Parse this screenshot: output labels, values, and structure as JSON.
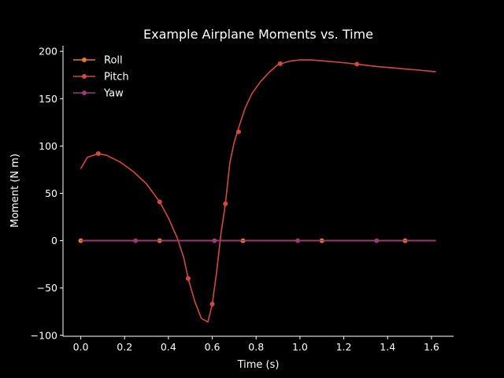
{
  "chart_data": {
    "type": "line",
    "title": "Example Airplane Moments vs. Time",
    "xlabel": "Time (s)",
    "ylabel": "Moment (N m)",
    "xlim": [
      -0.081,
      1.701
    ],
    "ylim": [
      -101,
      206
    ],
    "xticks": [
      0.0,
      0.2,
      0.4,
      0.6,
      0.8,
      1.0,
      1.2,
      1.4,
      1.6
    ],
    "xtick_labels": [
      "0.0",
      "0.2",
      "0.4",
      "0.6",
      "0.8",
      "1.0",
      "1.2",
      "1.4",
      "1.6"
    ],
    "yticks": [
      -100,
      -50,
      0,
      50,
      100,
      150,
      200
    ],
    "ytick_labels": [
      "−100",
      "−50",
      "0",
      "50",
      "100",
      "150",
      "200"
    ],
    "grid": false,
    "legend_position": "top-left",
    "background": "#000000",
    "foreground": "#ffffff",
    "series": [
      {
        "name": "Roll",
        "color": "#e8792a",
        "x": [
          0.0,
          1.62
        ],
        "y": [
          0,
          0
        ],
        "markers_x": [
          0.0,
          0.36,
          0.74,
          1.1,
          1.48
        ],
        "markers_y": [
          0,
          0,
          0,
          0,
          0
        ]
      },
      {
        "name": "Pitch",
        "color": "#d2493f",
        "x": [
          0.0,
          0.03,
          0.08,
          0.12,
          0.18,
          0.24,
          0.3,
          0.36,
          0.4,
          0.44,
          0.47,
          0.49,
          0.52,
          0.55,
          0.58,
          0.6,
          0.62,
          0.64,
          0.66,
          0.68,
          0.7,
          0.72,
          0.75,
          0.78,
          0.82,
          0.86,
          0.9,
          0.95,
          1.0,
          1.05,
          1.1,
          1.2,
          1.26,
          1.35,
          1.45,
          1.55,
          1.62
        ],
        "y": [
          76,
          88,
          92,
          90,
          83,
          73,
          60,
          41,
          24,
          3,
          -18,
          -40,
          -64,
          -82,
          -86,
          -67,
          -33,
          8,
          39,
          82,
          104,
          119,
          140,
          155,
          168,
          178,
          186,
          189.5,
          191,
          191,
          190,
          188,
          186.5,
          184,
          182,
          180,
          178.5
        ],
        "markers_x": [
          0.08,
          0.36,
          0.49,
          0.6,
          0.66,
          0.72,
          0.91,
          1.26
        ],
        "markers_y": [
          92,
          41,
          -40,
          -67,
          39,
          115,
          187,
          186.5
        ]
      },
      {
        "name": "Yaw",
        "color": "#9b3a7a",
        "x": [
          0.0,
          1.62
        ],
        "y": [
          0,
          0
        ],
        "markers_x": [
          0.25,
          0.61,
          0.99,
          1.35
        ],
        "markers_y": [
          0,
          0,
          0,
          0
        ]
      }
    ]
  }
}
